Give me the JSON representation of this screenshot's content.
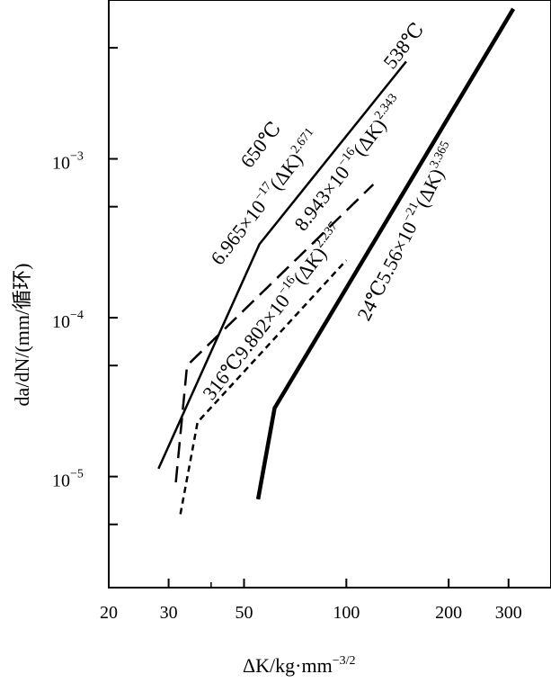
{
  "chart_data": {
    "type": "line",
    "title": "",
    "xlabel": "ΔK/kg·mm",
    "xlabel_exp": "−3/2",
    "ylabel": "da/dN/(mm/循环)",
    "x_scale": "log",
    "y_scale": "log",
    "xlim": [
      20,
      400
    ],
    "ylim": [
      2e-06,
      0.01
    ],
    "x_ticks": [
      20,
      30,
      50,
      100,
      200,
      300
    ],
    "x_tick_labels": [
      "20",
      "30",
      "50",
      "100",
      "200",
      "300"
    ],
    "y_ticks": [
      1e-05,
      0.0001,
      0.001
    ],
    "y_tick_labels": [
      {
        "base": "10",
        "exp": "−5"
      },
      {
        "base": "10",
        "exp": "−4"
      },
      {
        "base": "10",
        "exp": "−3"
      }
    ],
    "grid": false,
    "series": [
      {
        "temperature": "650℃",
        "equation": "6.965×10−17(ΔK)2.671",
        "style": "solid",
        "stroke_width": 2.5,
        "points": [
          {
            "x": 28,
            "y": 1.12e-05
          },
          {
            "x": 55.5,
            "y": 0.00029
          },
          {
            "x": 150,
            "y": 0.0041
          }
        ]
      },
      {
        "temperature": "538℃",
        "equation": "8.943×10−16(ΔK)2.343",
        "style": "longdash",
        "stroke_width": 2.5,
        "points": [
          {
            "x": 31.5,
            "y": 9.2e-06
          },
          {
            "x": 34,
            "y": 5e-05
          },
          {
            "x": 120,
            "y": 0.00069
          }
        ]
      },
      {
        "temperature": "316℃",
        "equation": "9.802×10−16(ΔK)2.237",
        "style": "shortdash",
        "stroke_width": 2.5,
        "points": [
          {
            "x": 32.5,
            "y": 5.8e-06
          },
          {
            "x": 36.5,
            "y": 2.2e-05
          },
          {
            "x": 100,
            "y": 0.00023
          }
        ]
      },
      {
        "temperature": "24℃",
        "equation": "5.56×10−21(ΔK)3.365",
        "style": "solid-thick",
        "stroke_width": 4.5,
        "points": [
          {
            "x": 55,
            "y": 7.2e-06
          },
          {
            "x": 61.5,
            "y": 2.7e-05
          },
          {
            "x": 310,
            "y": 0.0088
          }
        ]
      }
    ],
    "annotations": [
      {
        "id": "t650",
        "text": "650℃"
      },
      {
        "id": "e650",
        "parts": [
          {
            "t": "6.965×10"
          },
          {
            "t": "−17",
            "sup": true
          },
          {
            "t": "(ΔK)"
          },
          {
            "t": "2.671",
            "sup": true
          }
        ]
      },
      {
        "id": "t538",
        "text": "538℃"
      },
      {
        "id": "e538",
        "parts": [
          {
            "t": "8.943×10"
          },
          {
            "t": "−16",
            "sup": true
          },
          {
            "t": "(ΔK)"
          },
          {
            "t": "2.343",
            "sup": true
          }
        ]
      },
      {
        "id": "e316",
        "parts": [
          {
            "t": "316℃9.802×10"
          },
          {
            "t": "−16",
            "sup": true
          },
          {
            "t": "(ΔK)"
          },
          {
            "t": "2.237",
            "sup": true
          }
        ]
      },
      {
        "id": "e24",
        "parts": [
          {
            "t": "24℃5.56×10"
          },
          {
            "t": "−21",
            "sup": true
          },
          {
            "t": "(ΔK)"
          },
          {
            "t": "3.365",
            "sup": true
          }
        ]
      }
    ]
  }
}
